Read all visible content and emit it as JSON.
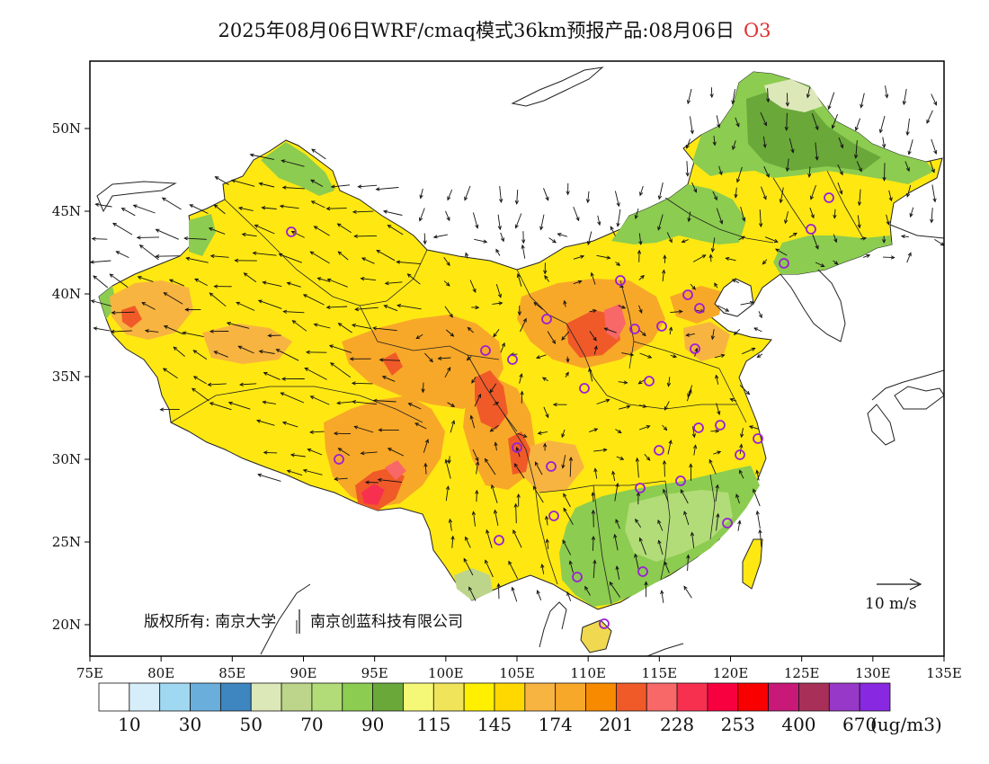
{
  "title": {
    "text": "2025年08月06日WRF/cmaq模式36km预报产品:08月06日",
    "species": "O3",
    "species_color": "#e03030"
  },
  "map": {
    "lon_ticks": [
      "75E",
      "80E",
      "85E",
      "90E",
      "95E",
      "100E",
      "105E",
      "110E",
      "115E",
      "120E",
      "125E",
      "130E",
      "135E"
    ],
    "lat_ticks": [
      "20N",
      "25N",
      "30N",
      "35N",
      "40N",
      "45N",
      "50N"
    ],
    "copyright": "版权所有: 南京大学",
    "company": "南京创蓝科技有限公司",
    "wind_scale_label": "10 m/s",
    "station_color": "#9a1fd6"
  },
  "legend": {
    "colors": [
      "#ffffff",
      "#d6eefa",
      "#a0d8f2",
      "#6aaedc",
      "#3d86c0",
      "#dde8b8",
      "#bcd58a",
      "#b2dc78",
      "#8ccc50",
      "#6aa83a",
      "#f4f876",
      "#f0e45a",
      "#fff000",
      "#ffd800",
      "#f8b440",
      "#f8a828",
      "#f88a00",
      "#f05a28",
      "#f86868",
      "#f83050",
      "#f80040",
      "#f80000",
      "#c81878",
      "#a83058",
      "#9838c8",
      "#8828e0"
    ],
    "labels": [
      "10",
      "30",
      "50",
      "70",
      "90",
      "115",
      "145",
      "174",
      "201",
      "228",
      "253",
      "400",
      "670"
    ],
    "unit": "(ug/m3)"
  }
}
